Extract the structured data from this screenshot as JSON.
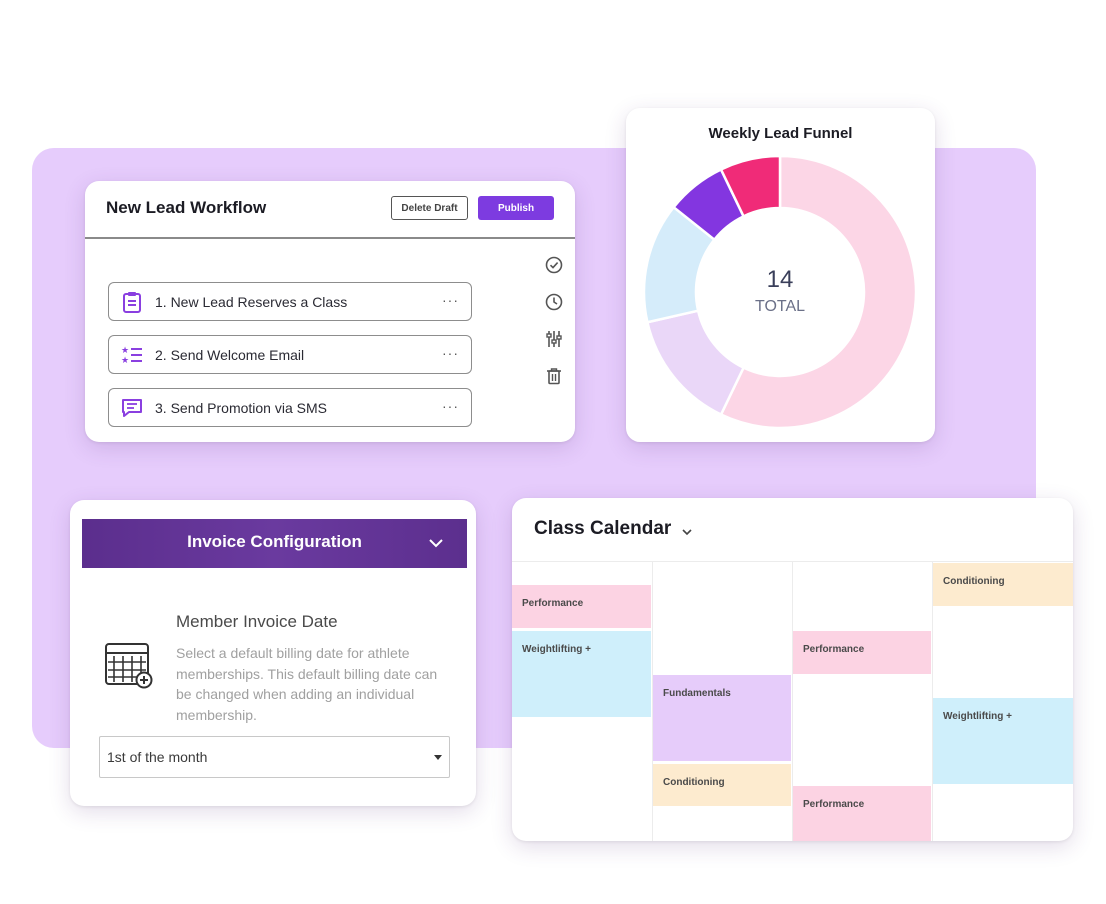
{
  "colors": {
    "background_panel": "#e6ccfc",
    "primary": "#7d3be0",
    "invoice_header": "#5b2e8d",
    "event_pink": "#fcd3e3",
    "event_blue": "#cfeffb",
    "event_purple": "#e6ccfa",
    "event_yellow": "#fdebcf"
  },
  "workflow": {
    "title": "New Lead Workflow",
    "delete_label": "Delete Draft",
    "publish_label": "Publish",
    "steps": [
      {
        "label": "1. New Lead Reserves a Class",
        "icon": "clipboard-icon",
        "more": "···"
      },
      {
        "label": "2. Send Welcome Email",
        "icon": "star-list-icon",
        "more": "···"
      },
      {
        "label": "3. Send Promotion via SMS",
        "icon": "chat-icon",
        "more": "···"
      }
    ],
    "side_icons": [
      "check-circle-icon",
      "clock-icon",
      "sliders-icon",
      "trash-icon"
    ]
  },
  "funnel": {
    "title": "Weekly Lead Funnel",
    "total_value": "14",
    "total_label": "TOTAL",
    "chart_data": {
      "type": "pie",
      "title": "Weekly Lead Funnel",
      "total": 14,
      "slices": [
        {
          "value": 8,
          "color": "#fcd6e6"
        },
        {
          "value": 2,
          "color": "#ead7f8"
        },
        {
          "value": 2,
          "color": "#d5ecfa"
        },
        {
          "value": 1,
          "color": "#8336e0"
        },
        {
          "value": 1,
          "color": "#f02b78"
        }
      ]
    }
  },
  "invoice": {
    "header": "Invoice Configuration",
    "heading": "Member Invoice Date",
    "description": "Select a default billing date for athlete memberships. This default billing date can be changed when adding an individual membership.",
    "select_value": "1st of the month",
    "icons": [
      "chevron-down-icon",
      "calendar-add-icon",
      "caret-down-icon"
    ]
  },
  "calendar": {
    "title": "Class Calendar",
    "events": [
      {
        "label": "Performance",
        "color": "pink"
      },
      {
        "label": "Weightlifting +",
        "color": "blue"
      },
      {
        "label": "Fundamentals",
        "color": "purple"
      },
      {
        "label": "Conditioning",
        "color": "yellow"
      },
      {
        "label": "Performance",
        "color": "pink"
      },
      {
        "label": "Performance",
        "color": "pink"
      },
      {
        "label": "Conditioning",
        "color": "yellow"
      },
      {
        "label": "Weightlifting +",
        "color": "blue"
      }
    ]
  }
}
